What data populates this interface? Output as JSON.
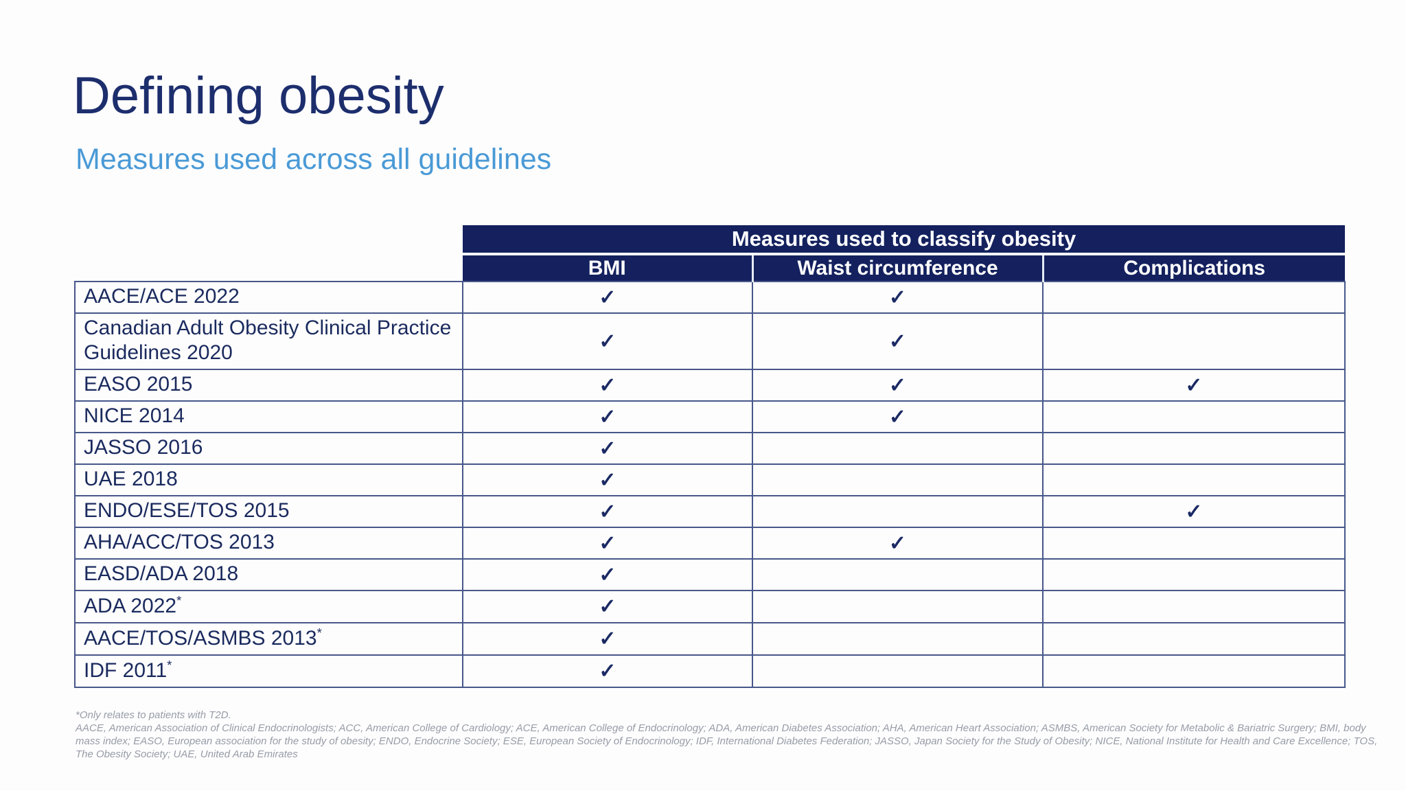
{
  "slide": {
    "title": "Defining obesity",
    "subtitle": "Measures used across all guidelines"
  },
  "table": {
    "header": "Measures used to classify obesity",
    "columns": [
      "BMI",
      "Waist circumference",
      "Complications"
    ],
    "check_symbol": "✓",
    "rows": [
      {
        "label": "AACE/ACE 2022",
        "sup": "",
        "checks": [
          true,
          true,
          false
        ]
      },
      {
        "label": "Canadian Adult Obesity Clinical Practice Guidelines 2020",
        "sup": "",
        "checks": [
          true,
          true,
          false
        ]
      },
      {
        "label": "EASO 2015",
        "sup": "",
        "checks": [
          true,
          true,
          true
        ]
      },
      {
        "label": "NICE 2014",
        "sup": "",
        "checks": [
          true,
          true,
          false
        ]
      },
      {
        "label": "JASSO 2016",
        "sup": "",
        "checks": [
          true,
          false,
          false
        ]
      },
      {
        "label": "UAE 2018",
        "sup": "",
        "checks": [
          true,
          false,
          false
        ]
      },
      {
        "label": "ENDO/ESE/TOS 2015",
        "sup": "",
        "checks": [
          true,
          false,
          true
        ]
      },
      {
        "label": "AHA/ACC/TOS 2013",
        "sup": "",
        "checks": [
          true,
          true,
          false
        ]
      },
      {
        "label": "EASD/ADA 2018",
        "sup": "",
        "checks": [
          true,
          false,
          false
        ]
      },
      {
        "label": "ADA 2022",
        "sup": "*",
        "checks": [
          true,
          false,
          false
        ]
      },
      {
        "label": "AACE/TOS/ASMBS 2013",
        "sup": "*",
        "checks": [
          true,
          false,
          false
        ]
      },
      {
        "label": "IDF 2011",
        "sup": "*",
        "checks": [
          true,
          false,
          false
        ]
      }
    ]
  },
  "footnotes": {
    "t2d": "*Only relates to patients with T2D.",
    "abbreviations": "AACE, American Association of Clinical Endocrinologists; ACC, American College of Cardiology; ACE, American College of Endocrinology; ADA, American Diabetes Association; AHA, American Heart Association; ASMBS, American Society for Metabolic & Bariatric Surgery; BMI, body\nmass index; EASO, European association for the study of obesity; ENDO, Endocrine Society; ESE, European Society of Endocrinology; IDF, International Diabetes Federation; JASSO, Japan Society for the Study of Obesity; NICE, National Institute for Health and Care Excellence; TOS,\nThe Obesity Society; UAE, United Arab Emirates"
  },
  "colors": {
    "header_navy": "#14215e",
    "title_navy": "#1d2e6d",
    "subtitle_blue": "#4a9ad6",
    "check_navy": "#1b2a64",
    "grid_line": "#47578a",
    "footnote_gray": "#979ca6"
  }
}
